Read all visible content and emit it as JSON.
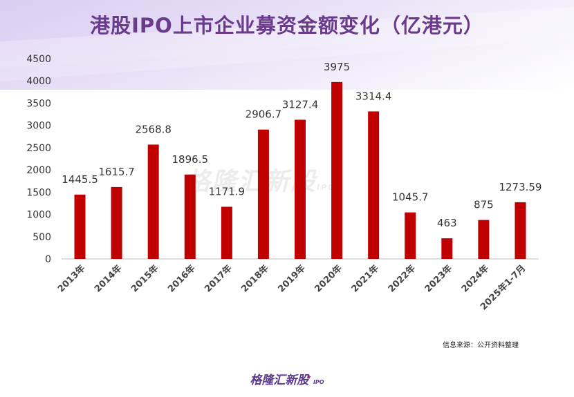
{
  "title": "港股IPO上市企业募资金额变化（亿港元）",
  "source": "信息来源：公开资料整理",
  "brand": {
    "name": "格隆汇新股",
    "suffix": "IPO"
  },
  "watermark": {
    "name": "格隆汇新股",
    "suffix": "IPO"
  },
  "colors": {
    "bar": "#c00000",
    "title": "#6a3a8c",
    "brand": "#5b3a8e"
  },
  "chart_data": {
    "type": "bar",
    "title": "港股IPO上市企业募资金额变化（亿港元）",
    "xlabel": "",
    "ylabel": "",
    "categories": [
      "2013年",
      "2014年",
      "2015年",
      "2016年",
      "2017年",
      "2018年",
      "2019年",
      "2020年",
      "2021年",
      "2022年",
      "2023年",
      "2024年",
      "2025年1-7月"
    ],
    "values": [
      1445.5,
      1615.7,
      2568.8,
      1896.5,
      1171.9,
      2906.7,
      3127.4,
      3975,
      3314.4,
      1045.7,
      463,
      875,
      1273.59
    ],
    "data_labels": [
      "1445.5",
      "1615.7",
      "2568.8",
      "1896.5",
      "1171.9",
      "2906.7",
      "3127.4",
      "3975",
      "3314.4",
      "1045.7",
      "463",
      "875",
      "1273.59"
    ],
    "yticks": [
      0,
      500,
      1000,
      1500,
      2000,
      2500,
      3000,
      3500,
      4000,
      4500
    ],
    "ylim": [
      0,
      4500
    ],
    "grid": false,
    "legend": "none"
  }
}
